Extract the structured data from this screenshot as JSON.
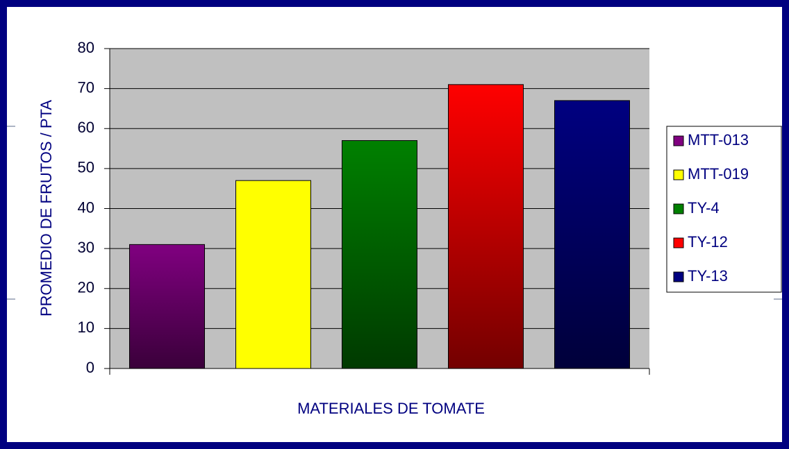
{
  "chart_data": {
    "type": "bar",
    "x_label": "MATERIALES DE TOMATE",
    "y_label": "PROMEDIO DE FRUTOS / PTA",
    "categories": [
      null
    ],
    "series": [
      {
        "name": "MTT-013",
        "color": "#800080",
        "values": [
          31
        ]
      },
      {
        "name": "MTT-019",
        "color": "#ffff00",
        "values": [
          47
        ]
      },
      {
        "name": "TY-4",
        "color": "#008000",
        "values": [
          57
        ]
      },
      {
        "name": "TY-12",
        "color": "#ff0000",
        "values": [
          71
        ]
      },
      {
        "name": "TY-13",
        "color": "#000080",
        "values": [
          67
        ]
      }
    ],
    "ylim": [
      0,
      80
    ],
    "yticks": [
      0,
      10,
      20,
      30,
      40,
      50,
      60,
      70,
      80
    ],
    "grid": true,
    "legend": "right"
  }
}
